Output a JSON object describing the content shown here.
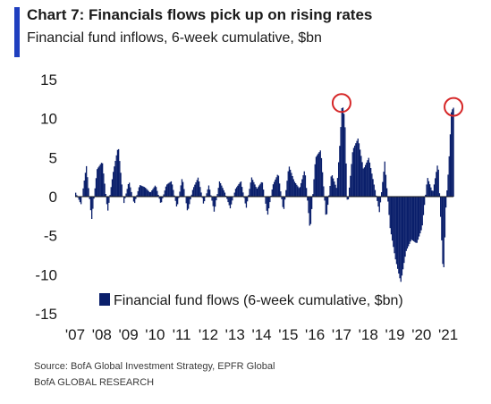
{
  "header": {
    "title": "Chart 7: Financials flows pick up on rising rates",
    "subtitle": "Financial fund inflows, 6-week cumulative, $bn"
  },
  "footer": {
    "source": "Source:  BofA Global Investment Strategy, EPFR Global",
    "brand": "BofA GLOBAL RESEARCH"
  },
  "colors": {
    "accent": "#1f3fbf",
    "series": "#0a1f6b",
    "highlight": "#d62728",
    "zero_line": "#1a1a1a"
  },
  "chart_data": {
    "type": "bar",
    "title": "Chart 7: Financials flows pick up on rising rates",
    "subtitle": "Financial fund inflows, 6-week cumulative, $bn",
    "xlabel": "",
    "ylabel": "",
    "ylim": [
      -15,
      15
    ],
    "yticks": [
      15,
      10,
      5,
      0,
      -5,
      -10,
      -15
    ],
    "xlim": [
      2007.0,
      2021.5
    ],
    "xtick_labels": [
      "'07",
      "'08",
      "'09",
      "'10",
      "'11",
      "'12",
      "'13",
      "'14",
      "'15",
      "'16",
      "'17",
      "'18",
      "'19",
      "'20",
      "'21"
    ],
    "grid": false,
    "legend_position": "bottom-left",
    "series": [
      {
        "name": "Financial fund flows (6-week cumulative, $bn)",
        "x": [
          2007.0,
          2007.2,
          2007.4,
          2007.6,
          2007.8,
          2008.0,
          2008.2,
          2008.4,
          2008.6,
          2008.8,
          2009.0,
          2009.2,
          2009.4,
          2009.6,
          2009.8,
          2010.0,
          2010.2,
          2010.4,
          2010.6,
          2010.8,
          2011.0,
          2011.2,
          2011.4,
          2011.6,
          2011.8,
          2012.0,
          2012.2,
          2012.4,
          2012.6,
          2012.8,
          2013.0,
          2013.2,
          2013.4,
          2013.6,
          2013.8,
          2014.0,
          2014.2,
          2014.4,
          2014.6,
          2014.8,
          2015.0,
          2015.2,
          2015.4,
          2015.6,
          2015.8,
          2016.0,
          2016.2,
          2016.4,
          2016.6,
          2016.8,
          2016.9,
          2017.0,
          2017.1,
          2017.2,
          2017.4,
          2017.6,
          2017.8,
          2018.0,
          2018.2,
          2018.4,
          2018.6,
          2018.8,
          2019.0,
          2019.2,
          2019.4,
          2019.6,
          2019.8,
          2020.0,
          2020.2,
          2020.4,
          2020.6,
          2020.8,
          2020.9,
          2021.0,
          2021.1,
          2021.2
        ],
        "values": [
          0.5,
          -1,
          4,
          -3,
          3.5,
          4.5,
          -2,
          3,
          6.5,
          -1,
          2,
          -1,
          1.5,
          1.2,
          0.5,
          1.5,
          -1,
          1.5,
          2,
          -1.5,
          2.5,
          -2,
          1,
          2.5,
          -1,
          1.5,
          -2,
          2,
          0.5,
          -1.5,
          1,
          2,
          -1.5,
          2.5,
          1,
          2,
          -2.5,
          1.5,
          3,
          -2,
          4,
          2,
          1,
          3.5,
          -4.5,
          5,
          6,
          -3,
          3,
          1,
          6,
          12,
          10,
          -1.5,
          6,
          7.5,
          3.5,
          5,
          1.5,
          -2,
          4.5,
          -4,
          -8,
          -11,
          -7,
          -5.5,
          -6,
          -4,
          2.5,
          0.5,
          4.5,
          -10.5,
          -1,
          4,
          11,
          11.5
        ],
        "highlighted_peaks": [
          2017.0,
          2021.2
        ]
      }
    ]
  }
}
